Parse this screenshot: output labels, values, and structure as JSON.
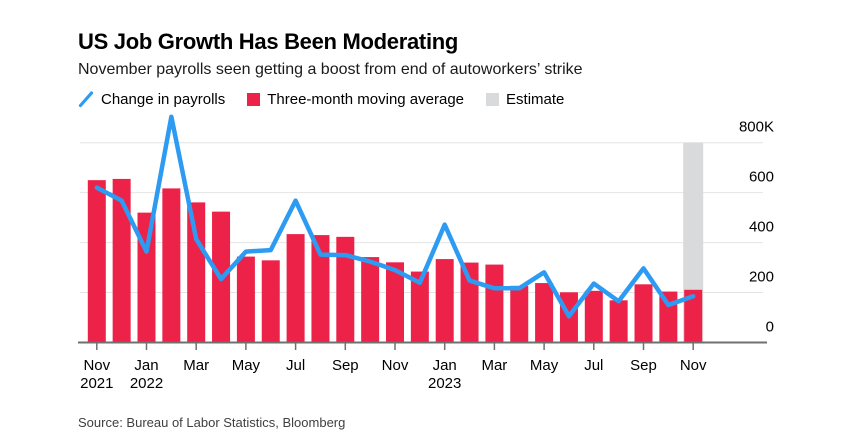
{
  "chart_data": {
    "type": "combo-bar-line",
    "title": "US Job Growth Has Been Moderating",
    "subtitle": "November payrolls seen getting a boost from end of autoworkers’ strike",
    "source": "Source: Bureau of Labor Statistics, Bloomberg",
    "unit": "thousands of jobs (K)",
    "legend_position": "top-left",
    "grid": "horizontal-light",
    "ylim": [
      0,
      800
    ],
    "categories": [
      "Nov 2021",
      "Dec 2021",
      "Jan 2022",
      "Feb 2022",
      "Mar 2022",
      "Apr 2022",
      "May 2022",
      "Jun 2022",
      "Jul 2022",
      "Aug 2022",
      "Sep 2022",
      "Oct 2022",
      "Nov 2022",
      "Dec 2022",
      "Jan 2023",
      "Feb 2023",
      "Mar 2023",
      "Apr 2023",
      "May 2023",
      "Jun 2023",
      "Jul 2023",
      "Aug 2023",
      "Sep 2023",
      "Oct 2023",
      "Nov 2023"
    ],
    "series": [
      {
        "name": "Change in payrolls",
        "type": "line",
        "color": "#2E9BF2",
        "values": [
          620,
          568,
          364,
          904,
          414,
          254,
          364,
          370,
          568,
          352,
          350,
          324,
          290,
          239,
          472,
          248,
          217,
          217,
          281,
          105,
          236,
          165,
          297,
          150,
          185
        ]
      },
      {
        "name": "Three-month moving average",
        "type": "bar",
        "color": "#ED2248",
        "values": [
          650,
          655,
          520,
          617,
          561,
          524,
          344,
          329,
          434,
          430,
          423,
          342,
          321,
          284,
          334,
          320,
          312,
          227,
          238,
          201,
          207,
          169,
          233,
          204,
          211
        ]
      },
      {
        "name": "Estimate",
        "type": "band",
        "color": "#D8DADB",
        "category": "Nov 2023",
        "index": 24,
        "band_top": 800
      }
    ],
    "yticks": [
      {
        "value": 0,
        "label": "0"
      },
      {
        "value": 200,
        "label": "200"
      },
      {
        "value": 400,
        "label": "400"
      },
      {
        "value": 600,
        "label": "600"
      },
      {
        "value": 800,
        "label": "800K"
      }
    ],
    "xticks": [
      {
        "index": 0,
        "month": "Nov",
        "year": "2021"
      },
      {
        "index": 2,
        "month": "Jan",
        "year": "2022"
      },
      {
        "index": 4,
        "month": "Mar"
      },
      {
        "index": 6,
        "month": "May"
      },
      {
        "index": 8,
        "month": "Jul"
      },
      {
        "index": 10,
        "month": "Sep"
      },
      {
        "index": 12,
        "month": "Nov"
      },
      {
        "index": 14,
        "month": "Jan",
        "year": "2023"
      },
      {
        "index": 16,
        "month": "Mar"
      },
      {
        "index": 18,
        "month": "May"
      },
      {
        "index": 20,
        "month": "Jul"
      },
      {
        "index": 22,
        "month": "Sep"
      },
      {
        "index": 24,
        "month": "Nov"
      }
    ],
    "colors": {
      "background": "#FFFFFF",
      "grid": "#E4E4E4",
      "axis": "#6F6F6F",
      "tick_label": "#000000"
    }
  }
}
